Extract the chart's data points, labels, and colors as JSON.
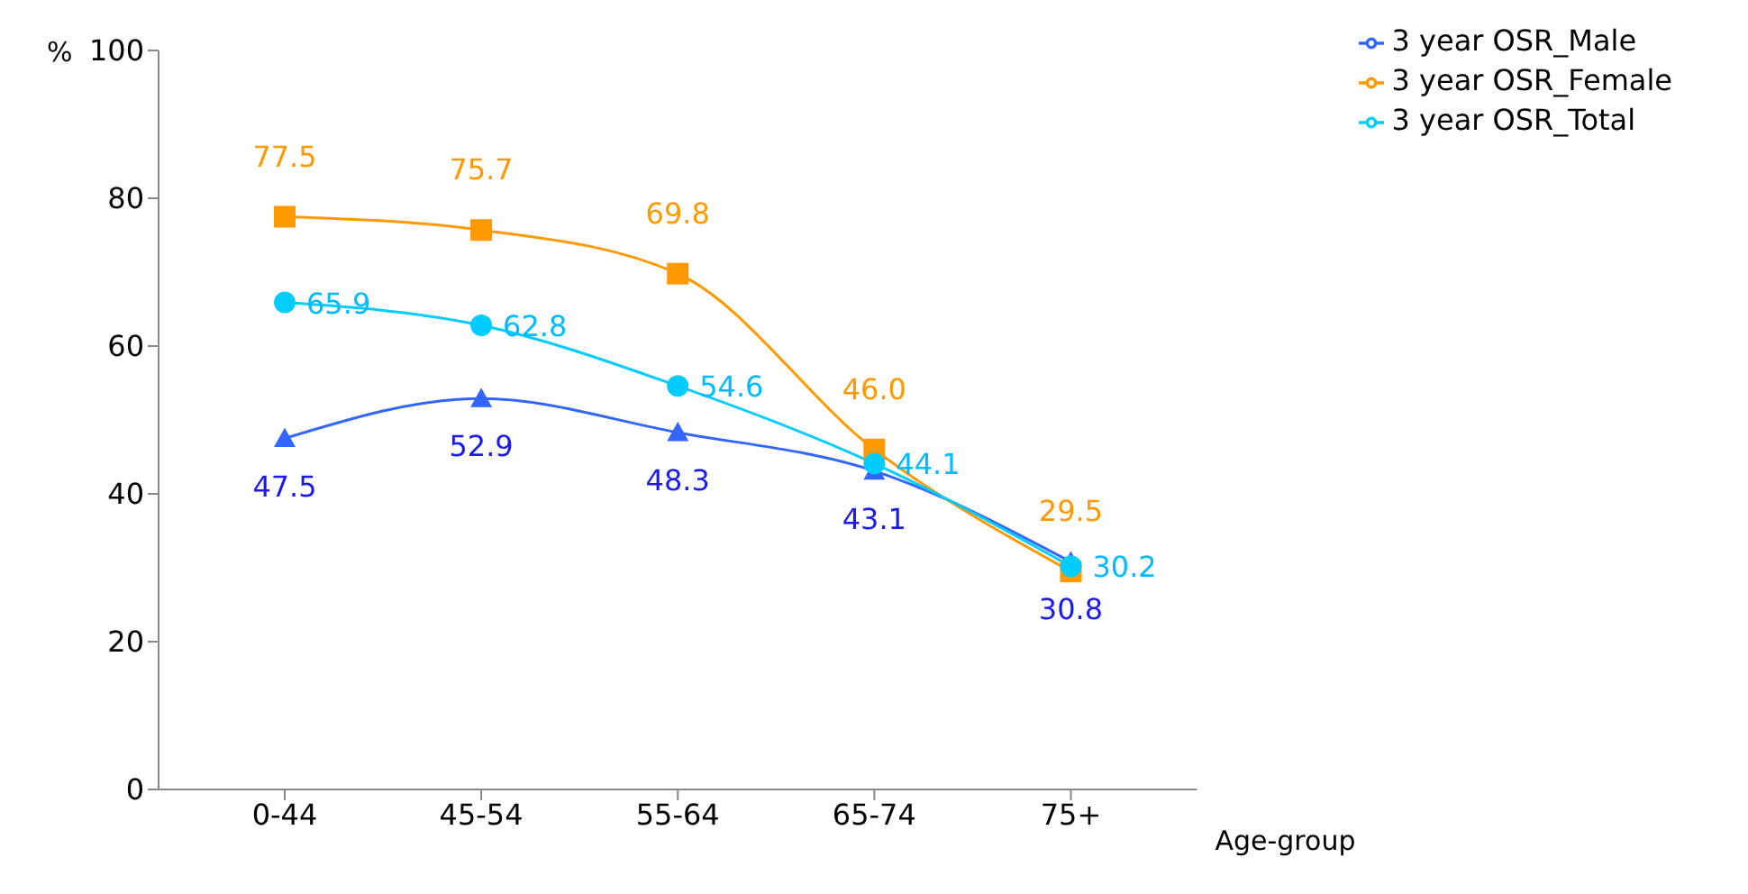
{
  "chart_data": {
    "type": "line",
    "xlabel": "Age-group",
    "ylabel": "%",
    "categories": [
      "0-44",
      "45-54",
      "55-64",
      "65-74",
      "75+"
    ],
    "series": [
      {
        "name": "3 year OSR_Male",
        "color": "#3366ff",
        "marker": "triangle",
        "values": [
          47.5,
          52.9,
          48.3,
          43.1,
          30.8
        ]
      },
      {
        "name": "3 year OSR_Female",
        "color": "#ff9900",
        "marker": "square",
        "values": [
          77.5,
          75.7,
          69.8,
          46.0,
          29.5
        ]
      },
      {
        "name": "3 year OSR_Total",
        "color": "#00ccff",
        "marker": "circle",
        "values": [
          65.9,
          62.8,
          54.6,
          44.1,
          30.2
        ]
      }
    ],
    "value_labels": [
      [
        "47.5",
        "52.9",
        "48.3",
        "43.1",
        "30.8"
      ],
      [
        "77.5",
        "75.7",
        "69.8",
        "46.0",
        "29.5"
      ],
      [
        "65.9",
        "62.8",
        "54.6",
        "44.1",
        "30.2"
      ]
    ],
    "ylim": [
      0,
      100
    ],
    "yticks": [
      0,
      20,
      40,
      60,
      80,
      100
    ],
    "grid": false,
    "legend": "top right"
  }
}
